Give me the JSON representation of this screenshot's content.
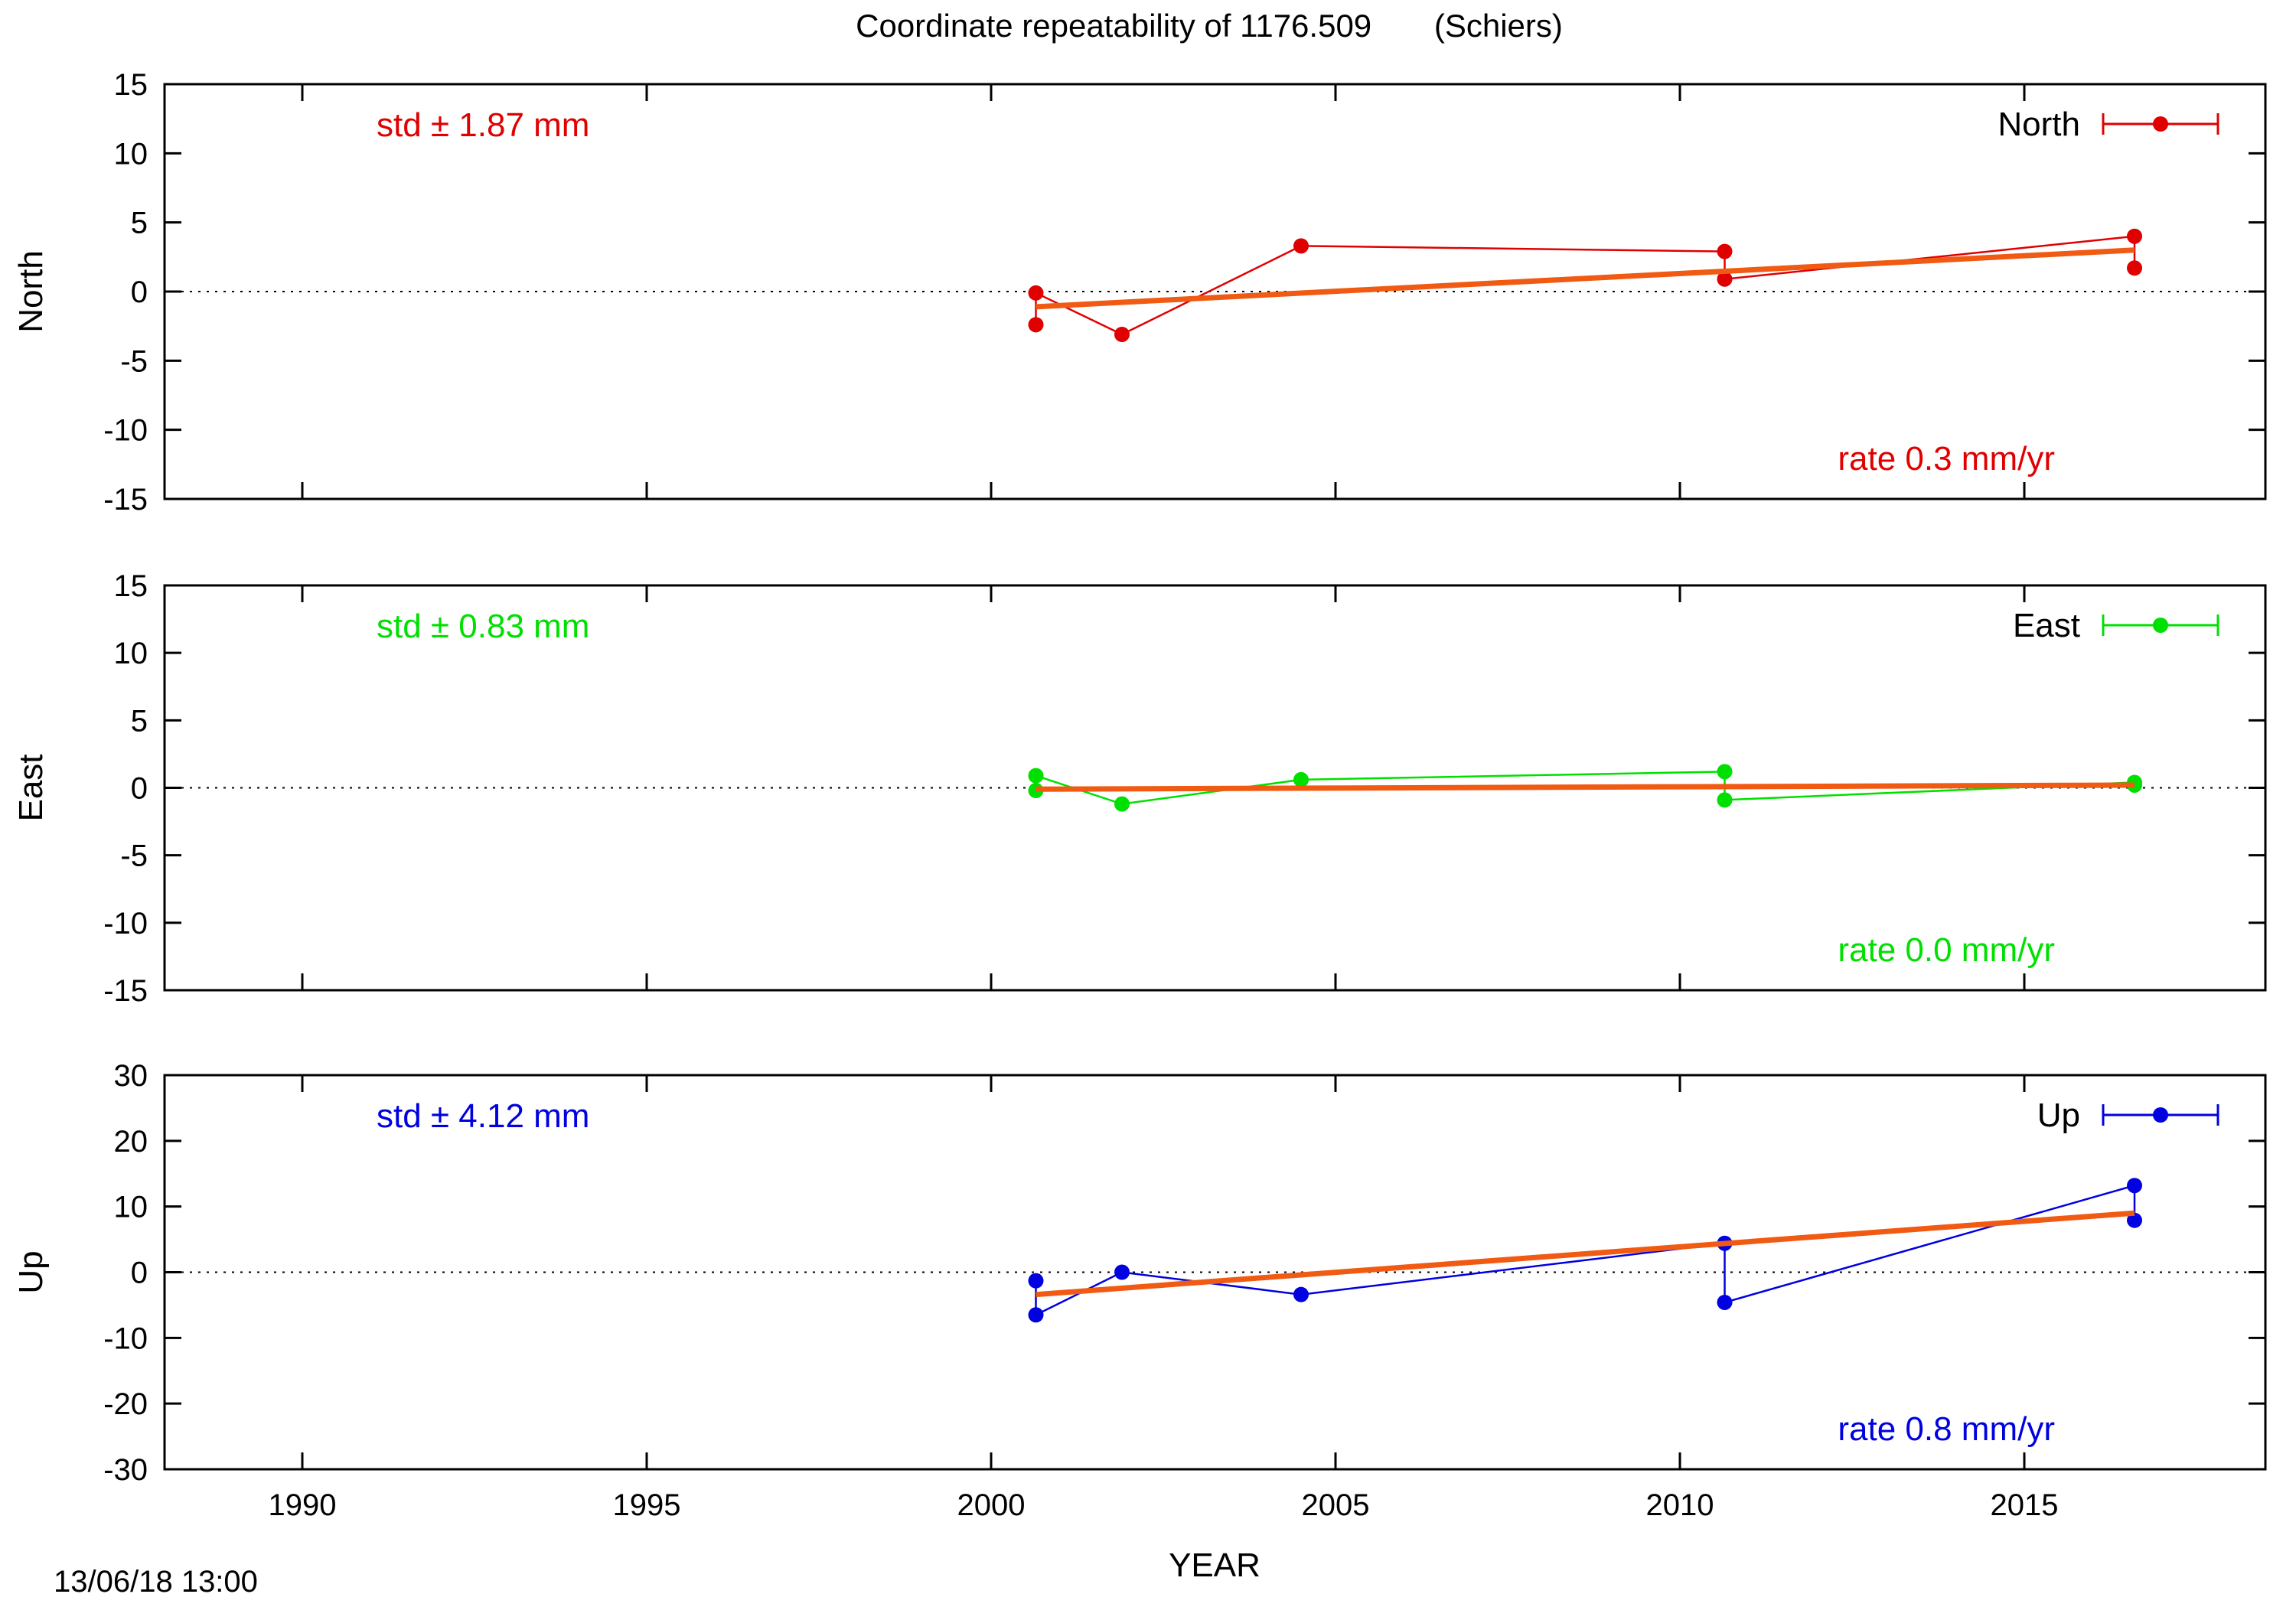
{
  "title": "Coordinate repeatability of 1176.509       (Schiers)",
  "footer": "13/06/18 13:00",
  "chart_data": {
    "type": "line",
    "xlabel": "YEAR",
    "xlim": [
      1988,
      2018.5
    ],
    "xticks": [
      1990,
      1995,
      2000,
      2005,
      2010,
      2015
    ],
    "grid": false,
    "legend_placement": "top-right",
    "panels": [
      {
        "id": "north",
        "name": "North",
        "ylabel": "North",
        "color": "#e00000",
        "ylim": [
          -15,
          15
        ],
        "yticks": [
          -15,
          -10,
          -5,
          0,
          5,
          10,
          15
        ],
        "std_text": "std ± 1.87 mm",
        "rate_text": "rate  0.3 mm/yr",
        "series": {
          "x": [
            2000.65,
            2000.65,
            2001.9,
            2004.5,
            2010.65,
            2010.65,
            2016.6,
            2016.6
          ],
          "y": [
            -2.4,
            -0.1,
            -3.1,
            3.3,
            2.9,
            0.9,
            4.0,
            1.7
          ]
        },
        "trend": {
          "x": [
            2000.65,
            2016.6
          ],
          "y": [
            -1.1,
            3.0
          ]
        }
      },
      {
        "id": "east",
        "name": "East",
        "ylabel": "East",
        "color": "#00e000",
        "ylim": [
          -15,
          15
        ],
        "yticks": [
          -15,
          -10,
          -5,
          0,
          5,
          10,
          15
        ],
        "std_text": "std ± 0.83 mm",
        "rate_text": "rate  0.0 mm/yr",
        "series": {
          "x": [
            2000.65,
            2000.65,
            2001.9,
            2004.5,
            2010.65,
            2010.65,
            2016.6,
            2016.6
          ],
          "y": [
            -0.2,
            0.9,
            -1.2,
            0.6,
            1.2,
            -0.9,
            0.4,
            0.2
          ]
        },
        "trend": {
          "x": [
            2000.65,
            2016.6
          ],
          "y": [
            -0.1,
            0.2
          ]
        }
      },
      {
        "id": "up",
        "name": "Up",
        "ylabel": "Up",
        "color": "#0000e0",
        "ylim": [
          -30,
          30
        ],
        "yticks": [
          -30,
          -20,
          -10,
          0,
          10,
          20,
          30
        ],
        "std_text": "std ± 4.12 mm",
        "rate_text": "rate  0.8 mm/yr",
        "series": {
          "x": [
            2000.65,
            2000.65,
            2001.9,
            2004.5,
            2010.65,
            2010.65,
            2016.6,
            2016.6
          ],
          "y": [
            -1.3,
            -6.5,
            0.0,
            -3.4,
            4.4,
            -4.6,
            13.2,
            7.9
          ]
        },
        "trend": {
          "x": [
            2000.65,
            2016.6
          ],
          "y": [
            -3.4,
            9.0
          ]
        }
      }
    ],
    "trend_color": "#f05a12"
  }
}
